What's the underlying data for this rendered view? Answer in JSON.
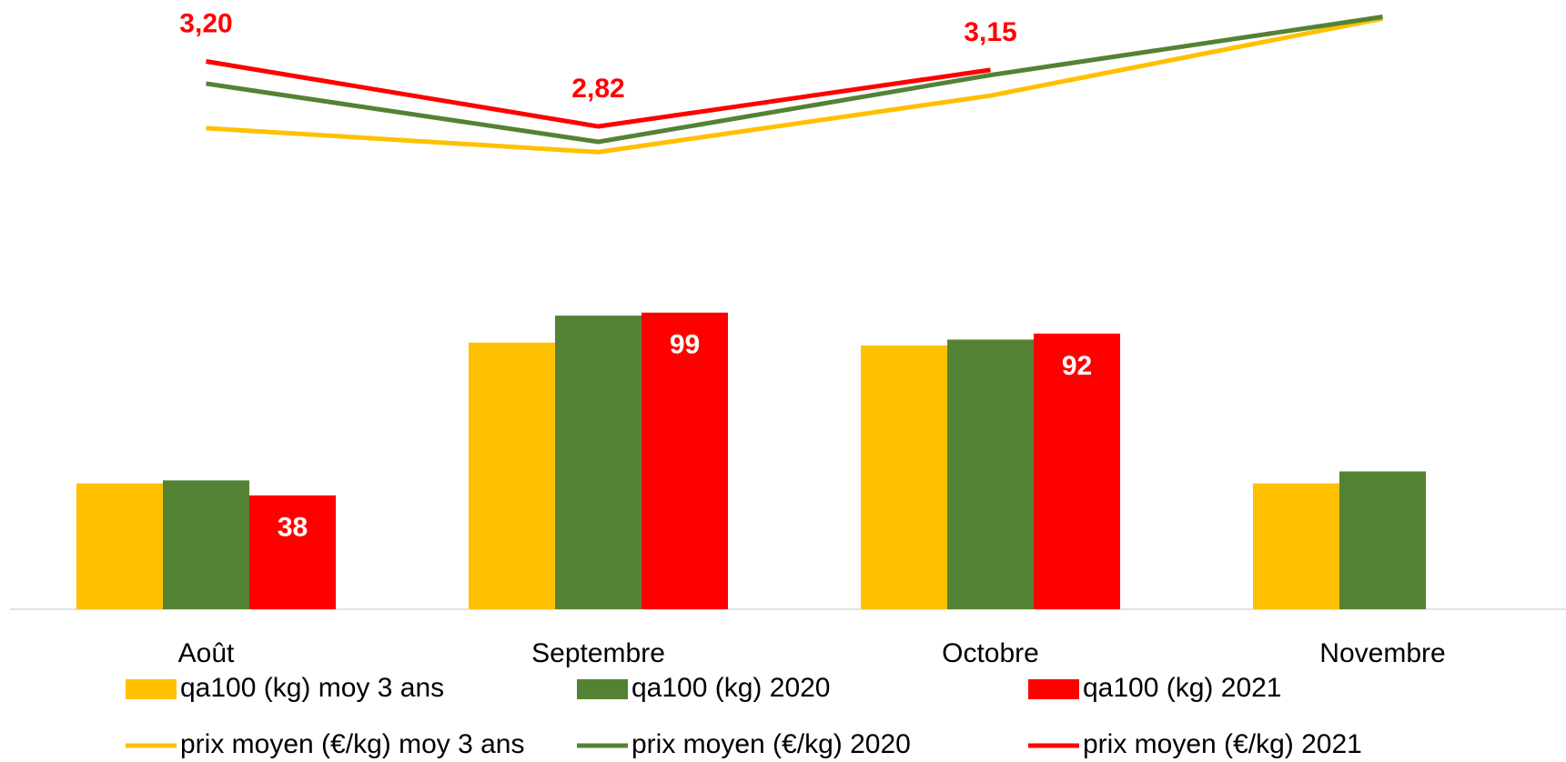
{
  "chart_data": {
    "type": "bar",
    "categories": [
      "Août",
      "Septembre",
      "Octobre",
      "Novembre"
    ],
    "ylim": [
      0,
      200
    ],
    "y2lim": [
      0,
      3.5
    ],
    "grid": false,
    "legend": "bottom",
    "series": [
      {
        "name": "qa100 (kg) moy 3 ans",
        "type": "bar",
        "color": "#ffc000",
        "values": [
          42,
          89,
          88,
          42
        ]
      },
      {
        "name": "qa100 (kg) 2020",
        "type": "bar",
        "color": "#548235",
        "values": [
          43,
          98,
          90,
          46
        ]
      },
      {
        "name": "qa100 (kg) 2021",
        "type": "bar",
        "color": "#ff0000",
        "values": [
          38,
          99,
          92,
          null
        ],
        "show_labels": true
      },
      {
        "name": "prix moyen (€/kg) moy 3 ans",
        "type": "line",
        "axis": "y2",
        "color": "#ffc000",
        "values": [
          2.81,
          2.67,
          3.0,
          3.45
        ]
      },
      {
        "name": "prix moyen (€/kg) 2020",
        "type": "line",
        "axis": "y2",
        "color": "#548235",
        "values": [
          3.07,
          2.73,
          3.12,
          3.46
        ]
      },
      {
        "name": "prix moyen (€/kg) 2021",
        "type": "line",
        "axis": "y2",
        "color": "#ff0000",
        "values": [
          3.2,
          2.82,
          3.15,
          null
        ],
        "value_labels": [
          "3,20",
          "2,82",
          "3,15",
          null
        ],
        "show_labels": true
      }
    ]
  }
}
